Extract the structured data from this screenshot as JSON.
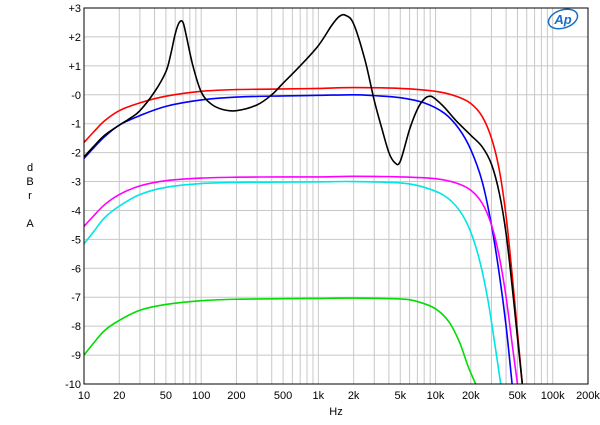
{
  "chart_data": {
    "type": "line",
    "xscale": "log",
    "xlim": [
      10,
      200000
    ],
    "ylim": [
      -10,
      3
    ],
    "grid": true,
    "xlabel": "Hz",
    "ylabel_chars": [
      "d",
      "B",
      "r",
      "",
      "A"
    ],
    "logo_text": "Ap",
    "x_ticks": [
      {
        "v": 10,
        "t": "10"
      },
      {
        "v": 20,
        "t": "20"
      },
      {
        "v": 50,
        "t": "50"
      },
      {
        "v": 100,
        "t": "100"
      },
      {
        "v": 200,
        "t": "200"
      },
      {
        "v": 500,
        "t": "500"
      },
      {
        "v": 1000,
        "t": "1k"
      },
      {
        "v": 2000,
        "t": "2k"
      },
      {
        "v": 5000,
        "t": "5k"
      },
      {
        "v": 10000,
        "t": "10k"
      },
      {
        "v": 20000,
        "t": "20k"
      },
      {
        "v": 50000,
        "t": "50k"
      },
      {
        "v": 100000,
        "t": "100k"
      },
      {
        "v": 200000,
        "t": "200k"
      }
    ],
    "y_ticks": [
      {
        "v": 3,
        "t": "+3"
      },
      {
        "v": 2,
        "t": "+2"
      },
      {
        "v": 1,
        "t": "+1"
      },
      {
        "v": 0,
        "t": "-0"
      },
      {
        "v": -1,
        "t": "-1"
      },
      {
        "v": -2,
        "t": "-2"
      },
      {
        "v": -3,
        "t": "-3"
      },
      {
        "v": -4,
        "t": "-4"
      },
      {
        "v": -5,
        "t": "-5"
      },
      {
        "v": -6,
        "t": "-6"
      },
      {
        "v": -7,
        "t": "-7"
      },
      {
        "v": -8,
        "t": "-8"
      },
      {
        "v": -9,
        "t": "-9"
      },
      {
        "v": -10,
        "t": "-10"
      }
    ],
    "series": [
      {
        "color": "#ff0000",
        "points": [
          [
            10,
            -1.65
          ],
          [
            12,
            -1.3
          ],
          [
            15,
            -0.9
          ],
          [
            20,
            -0.55
          ],
          [
            30,
            -0.28
          ],
          [
            50,
            -0.05
          ],
          [
            100,
            0.12
          ],
          [
            200,
            0.18
          ],
          [
            500,
            0.2
          ],
          [
            1000,
            0.22
          ],
          [
            2000,
            0.25
          ],
          [
            5000,
            0.22
          ],
          [
            10000,
            0.12
          ],
          [
            15000,
            -0.05
          ],
          [
            20000,
            -0.3
          ],
          [
            25000,
            -0.75
          ],
          [
            30000,
            -1.5
          ],
          [
            35000,
            -2.6
          ],
          [
            40000,
            -4.2
          ],
          [
            45000,
            -6.2
          ],
          [
            50000,
            -8.2
          ],
          [
            55000,
            -10
          ]
        ]
      },
      {
        "color": "#0000ff",
        "points": [
          [
            10,
            -2.2
          ],
          [
            12,
            -1.85
          ],
          [
            15,
            -1.45
          ],
          [
            20,
            -1.05
          ],
          [
            30,
            -0.72
          ],
          [
            50,
            -0.4
          ],
          [
            100,
            -0.18
          ],
          [
            200,
            -0.08
          ],
          [
            500,
            -0.04
          ],
          [
            1000,
            -0.02
          ],
          [
            2000,
            0
          ],
          [
            3000,
            -0.03
          ],
          [
            5000,
            -0.1
          ],
          [
            8000,
            -0.28
          ],
          [
            12000,
            -0.65
          ],
          [
            16000,
            -1.2
          ],
          [
            20000,
            -1.9
          ],
          [
            25000,
            -3.0
          ],
          [
            30000,
            -4.5
          ],
          [
            35000,
            -6.2
          ],
          [
            40000,
            -8.0
          ],
          [
            45000,
            -10
          ]
        ]
      },
      {
        "color": "#000000",
        "points": [
          [
            10,
            -2.15
          ],
          [
            12,
            -1.8
          ],
          [
            15,
            -1.4
          ],
          [
            20,
            -1.05
          ],
          [
            25,
            -0.8
          ],
          [
            30,
            -0.55
          ],
          [
            40,
            0.1
          ],
          [
            50,
            0.8
          ],
          [
            55,
            1.4
          ],
          [
            60,
            2.1
          ],
          [
            65,
            2.5
          ],
          [
            70,
            2.5
          ],
          [
            75,
            2.0
          ],
          [
            85,
            1.0
          ],
          [
            100,
            0.1
          ],
          [
            120,
            -0.3
          ],
          [
            150,
            -0.5
          ],
          [
            200,
            -0.55
          ],
          [
            300,
            -0.35
          ],
          [
            400,
            0
          ],
          [
            500,
            0.4
          ],
          [
            700,
            1.0
          ],
          [
            1000,
            1.7
          ],
          [
            1300,
            2.4
          ],
          [
            1500,
            2.7
          ],
          [
            1700,
            2.75
          ],
          [
            2000,
            2.45
          ],
          [
            2500,
            1.2
          ],
          [
            3000,
            -0.2
          ],
          [
            3500,
            -1.2
          ],
          [
            4000,
            -2.0
          ],
          [
            4500,
            -2.35
          ],
          [
            5000,
            -2.3
          ],
          [
            6000,
            -1.2
          ],
          [
            7000,
            -0.5
          ],
          [
            8000,
            -0.15
          ],
          [
            9000,
            -0.05
          ],
          [
            10000,
            -0.15
          ],
          [
            12000,
            -0.45
          ],
          [
            15000,
            -0.9
          ],
          [
            20000,
            -1.4
          ],
          [
            25000,
            -1.8
          ],
          [
            30000,
            -2.4
          ],
          [
            35000,
            -3.4
          ],
          [
            40000,
            -4.8
          ],
          [
            45000,
            -6.6
          ],
          [
            50000,
            -8.4
          ],
          [
            55000,
            -10
          ]
        ]
      },
      {
        "color": "#ff00ff",
        "points": [
          [
            10,
            -4.55
          ],
          [
            12,
            -4.2
          ],
          [
            15,
            -3.8
          ],
          [
            20,
            -3.45
          ],
          [
            30,
            -3.15
          ],
          [
            50,
            -2.97
          ],
          [
            100,
            -2.88
          ],
          [
            200,
            -2.85
          ],
          [
            500,
            -2.84
          ],
          [
            1000,
            -2.84
          ],
          [
            2000,
            -2.82
          ],
          [
            5000,
            -2.84
          ],
          [
            10000,
            -2.9
          ],
          [
            15000,
            -3.05
          ],
          [
            20000,
            -3.3
          ],
          [
            25000,
            -3.75
          ],
          [
            30000,
            -4.5
          ],
          [
            35000,
            -5.6
          ],
          [
            40000,
            -7.0
          ],
          [
            45000,
            -8.6
          ],
          [
            50000,
            -10
          ]
        ]
      },
      {
        "color": "#00e5e5",
        "points": [
          [
            10,
            -5.15
          ],
          [
            12,
            -4.75
          ],
          [
            15,
            -4.25
          ],
          [
            20,
            -3.85
          ],
          [
            30,
            -3.45
          ],
          [
            50,
            -3.2
          ],
          [
            100,
            -3.07
          ],
          [
            200,
            -3.03
          ],
          [
            500,
            -3.02
          ],
          [
            1000,
            -3.01
          ],
          [
            2000,
            -3.0
          ],
          [
            5000,
            -3.05
          ],
          [
            8000,
            -3.2
          ],
          [
            12000,
            -3.5
          ],
          [
            16000,
            -4.0
          ],
          [
            20000,
            -4.75
          ],
          [
            24000,
            -5.8
          ],
          [
            28000,
            -7.1
          ],
          [
            32000,
            -8.6
          ],
          [
            36000,
            -10
          ]
        ]
      },
      {
        "color": "#00dd00",
        "points": [
          [
            10,
            -9.0
          ],
          [
            12,
            -8.6
          ],
          [
            15,
            -8.15
          ],
          [
            20,
            -7.8
          ],
          [
            30,
            -7.45
          ],
          [
            50,
            -7.25
          ],
          [
            100,
            -7.12
          ],
          [
            200,
            -7.07
          ],
          [
            500,
            -7.05
          ],
          [
            1000,
            -7.04
          ],
          [
            2000,
            -7.03
          ],
          [
            5000,
            -7.06
          ],
          [
            7000,
            -7.15
          ],
          [
            10000,
            -7.4
          ],
          [
            13000,
            -7.85
          ],
          [
            16000,
            -8.55
          ],
          [
            19000,
            -9.4
          ],
          [
            22000,
            -10
          ]
        ]
      }
    ]
  }
}
